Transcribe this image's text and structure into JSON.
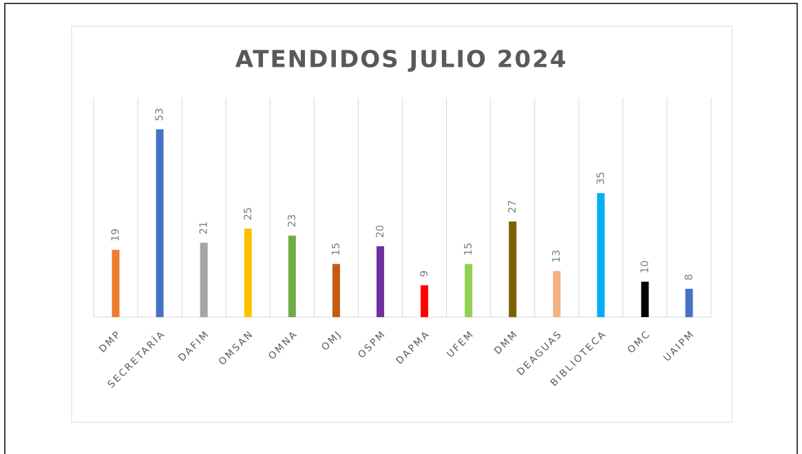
{
  "chart_data": {
    "type": "bar",
    "title": "ATENDIDOS JULIO 2024",
    "categories": [
      "DMP",
      "SECRETARÍA",
      "DAFIM",
      "OMSAN",
      "OMNA",
      "OMJ",
      "OSPM",
      "DAPMA",
      "UFEM",
      "DMM",
      "DEAGUAS",
      "BIBLIOTECA",
      "OMC",
      "UAIPM"
    ],
    "values": [
      19,
      53,
      21,
      25,
      23,
      15,
      20,
      9,
      15,
      27,
      13,
      35,
      10,
      8
    ],
    "colors": [
      "#ed7d31",
      "#4472c4",
      "#a5a5a5",
      "#ffc000",
      "#70ad47",
      "#c55a11",
      "#7030a0",
      "#ff0000",
      "#92d050",
      "#7f6000",
      "#f4b183",
      "#00b0f0",
      "#000000",
      "#4472c4"
    ],
    "grid": true
  }
}
